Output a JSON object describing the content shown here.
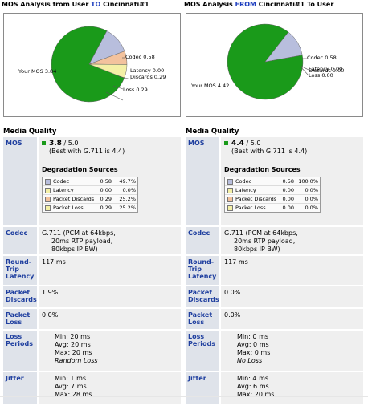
{
  "colors": {
    "green": "#1a9a1a",
    "blue": "#b8bedd",
    "peach": "#f3c29d",
    "yellow": "#f4f0a6",
    "label_bg": "#dfe3ea",
    "value_bg": "#efefef",
    "accent": "#1f3fbf"
  },
  "left": {
    "title_pre": "MOS Analysis from User ",
    "title_accent": "TO",
    "title_post": " Cincinnati#1",
    "pie": {
      "mos_label": "Your MOS 3.84",
      "codec_label": "Codec 0.58",
      "latency_label": "Latency 0.00",
      "discards_label": "Discards 0.29",
      "loss_label": "Loss 0.29",
      "values": {
        "mos": 3.84,
        "codec": 0.58,
        "latency": 0.0,
        "discards": 0.29,
        "loss": 0.29
      }
    },
    "media_quality_title": "Media Quality",
    "mos_label": "MOS",
    "mos_value": "3.8",
    "mos_scale": " / 5.0",
    "mos_best": "(Best with G.711 is 4.4)",
    "degradation_title": "Degradation Sources",
    "degradation": [
      {
        "name": "Codec",
        "value": "0.58",
        "pct": "49.7%",
        "color": "#b8bedd"
      },
      {
        "name": "Latency",
        "value": "0.00",
        "pct": "0.0%",
        "color": "#f4f0a6"
      },
      {
        "name": "Packet Discards",
        "value": "0.29",
        "pct": "25.2%",
        "color": "#f3c29d"
      },
      {
        "name": "Packet Loss",
        "value": "0.29",
        "pct": "25.2%",
        "color": "#f4f0a6"
      }
    ],
    "codec_label": "Codec",
    "codec_lines": [
      "G.711 (PCM at 64kbps,",
      "20ms RTP payload,",
      "80kbps IP BW)"
    ],
    "rtt_label": "Round-Trip Latency",
    "rtt_value": "117 ms",
    "discards_label": "Packet Discards",
    "discards_value": "1.9%",
    "loss_label": "Packet Loss",
    "loss_value": "0.0%",
    "lossp_label": "Loss Periods",
    "lossp_min": "Min:  20 ms",
    "lossp_avg": "Avg:  20 ms",
    "lossp_max": "Max:  20 ms",
    "lossp_note": "Random Loss",
    "jitter_label": "Jitter",
    "jitter_min": "Min:  1 ms",
    "jitter_avg": "Avg:  7 ms",
    "jitter_max": "Max:  28 ms"
  },
  "right": {
    "title_pre": "MOS Analysis ",
    "title_accent": "FROM",
    "title_post": " Cincinnati#1 To User",
    "pie": {
      "mos_label": "Your MOS 4.42",
      "codec_label": "Codec 0.58",
      "latency_label": "Latency 0.00",
      "discards_label": "Discards 0.00",
      "loss_label": "Loss 0.00",
      "values": {
        "mos": 4.42,
        "codec": 0.58,
        "latency": 0.0,
        "discards": 0.0,
        "loss": 0.0
      }
    },
    "media_quality_title": "Media Quality",
    "mos_label": "MOS",
    "mos_value": "4.4",
    "mos_scale": " / 5.0",
    "mos_best": "(Best with G.711 is 4.4)",
    "degradation_title": "Degradation Sources",
    "degradation": [
      {
        "name": "Codec",
        "value": "0.58",
        "pct": "100.0%",
        "color": "#b8bedd"
      },
      {
        "name": "Latency",
        "value": "0.00",
        "pct": "0.0%",
        "color": "#f4f0a6"
      },
      {
        "name": "Packet Discards",
        "value": "0.00",
        "pct": "0.0%",
        "color": "#f3c29d"
      },
      {
        "name": "Packet Loss",
        "value": "0.00",
        "pct": "0.0%",
        "color": "#f4f0a6"
      }
    ],
    "codec_label": "Codec",
    "codec_lines": [
      "G.711 (PCM at 64kbps,",
      "20ms RTP payload,",
      "80kbps IP BW)"
    ],
    "rtt_label": "Round-Trip Latency",
    "rtt_value": "117 ms",
    "discards_label": "Packet Discards",
    "discards_value": "0.0%",
    "loss_label": "Packet Loss",
    "loss_value": "0.0%",
    "lossp_label": "Loss Periods",
    "lossp_min": "Min:  0 ms",
    "lossp_avg": "Avg:  0 ms",
    "lossp_max": "Max:  0 ms",
    "lossp_note": "No Loss",
    "jitter_label": "Jitter",
    "jitter_min": "Min:  4 ms",
    "jitter_avg": "Avg:  6 ms",
    "jitter_max": "Max:  20 ms"
  }
}
